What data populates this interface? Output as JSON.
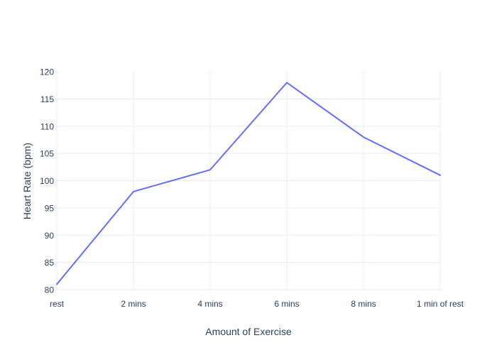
{
  "chart_data": {
    "type": "line",
    "categories": [
      "rest",
      "2 mins",
      "4 mins",
      "6 mins",
      "8 mins",
      "1 min of rest"
    ],
    "values": [
      81,
      98,
      102,
      118,
      108,
      101
    ],
    "xlabel": "Amount of Exercise",
    "ylabel": "Heart Rate (bpm)",
    "ylim": [
      80,
      120
    ],
    "yticks": [
      80,
      85,
      90,
      95,
      100,
      105,
      110,
      115,
      120
    ],
    "grid": "on",
    "legend": "none",
    "title": "",
    "colors": {
      "line": "#636efa",
      "grid": "#e5ecf6",
      "text": "#2a3f5f",
      "background": "#ffffff"
    }
  }
}
